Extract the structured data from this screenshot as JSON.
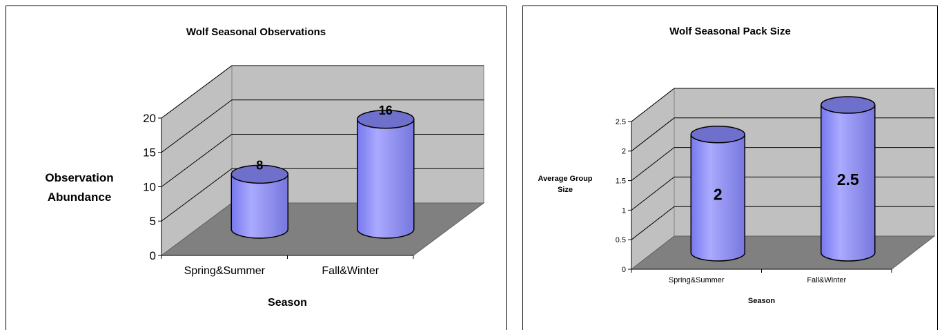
{
  "chart_data": [
    {
      "type": "bar",
      "title": "Wolf Seasonal Observations",
      "xlabel": "Season",
      "ylabel_lines": [
        "Observation",
        "Abundance"
      ],
      "categories": [
        "Spring&Summer",
        "Fall&Winter"
      ],
      "values": [
        8,
        16
      ],
      "value_labels": [
        "8",
        "16"
      ],
      "ylim": [
        0,
        20
      ],
      "yticks": [
        0,
        5,
        10,
        15,
        20
      ],
      "ytick_labels": [
        "0",
        "5",
        "10",
        "15",
        "20"
      ],
      "grid": true,
      "legend": "none",
      "bar_color": "#9999ff",
      "wall_color": "#c0c0c0",
      "floor_color": "#808080"
    },
    {
      "type": "bar",
      "title": "Wolf Seasonal Pack Size",
      "xlabel": "Season",
      "ylabel_lines": [
        "Average Group",
        "Size"
      ],
      "categories": [
        "Spring&Summer",
        "Fall&Winter"
      ],
      "values": [
        2,
        2.5
      ],
      "value_labels": [
        "2",
        "2.5"
      ],
      "ylim": [
        0,
        2.5
      ],
      "yticks": [
        0,
        0.5,
        1,
        1.5,
        2,
        2.5
      ],
      "ytick_labels": [
        "0",
        "0.5",
        "1",
        "1.5",
        "2",
        "2.5"
      ],
      "grid": true,
      "legend": "none",
      "bar_color": "#9999ff",
      "wall_color": "#c0c0c0",
      "floor_color": "#808080"
    }
  ]
}
